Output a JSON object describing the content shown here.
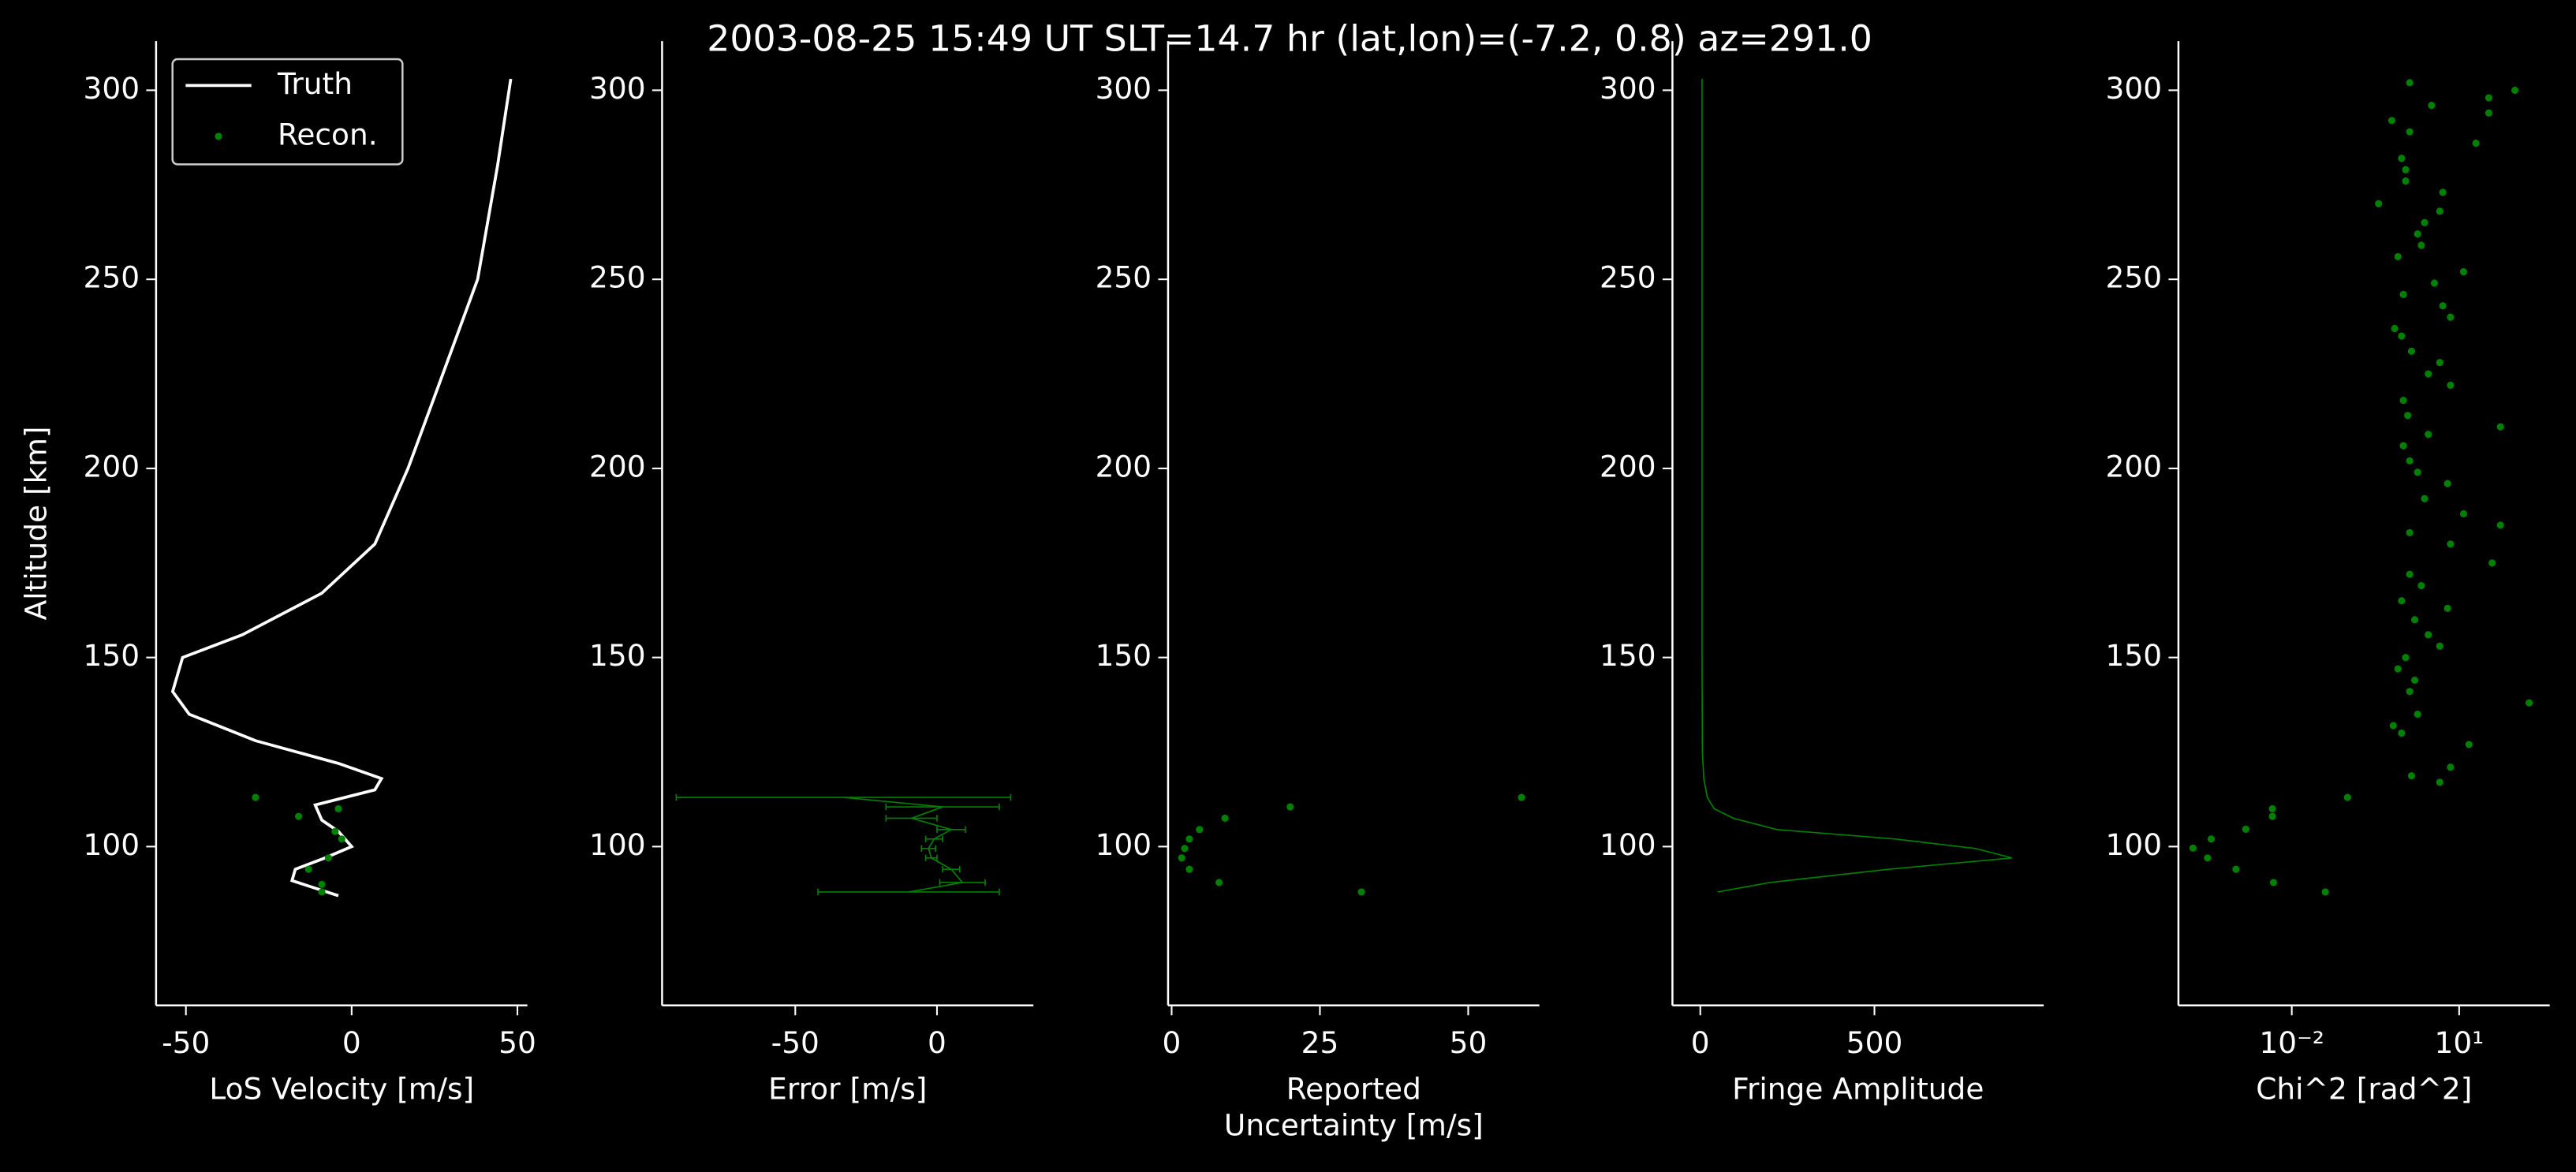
{
  "title": "2003-08-25 15:49 UT     SLT=14.7 hr      (lat,lon)=(-7.2, 0.8)      az=291.0",
  "chart_data": [
    {
      "type": "line",
      "xlabel": [
        "LoS Velocity [m/s]"
      ],
      "ylabel": "Altitude [km]",
      "xlim": [
        -59,
        53
      ],
      "ylim": [
        58,
        313
      ],
      "xticks": [
        -50,
        0,
        50
      ],
      "yticks": [
        100,
        150,
        200,
        250,
        300
      ],
      "legend": "upper left",
      "series": [
        {
          "name": "Truth",
          "color": "#ffffff",
          "style": "line",
          "x": [
            48,
            44,
            38,
            25,
            17,
            7,
            -9,
            -33,
            -51,
            -54,
            -49,
            -29,
            -4,
            9,
            7,
            -11,
            -9,
            -4,
            0,
            -8,
            -17,
            -18,
            -11,
            -4
          ],
          "y": [
            303,
            280,
            250,
            219,
            200,
            180,
            167,
            156,
            150,
            141,
            135,
            128,
            122,
            118,
            115,
            111,
            107,
            104,
            100,
            97,
            94,
            91,
            89,
            87
          ]
        },
        {
          "name": "Recon.",
          "color": "#008000",
          "style": "markers",
          "x": [
            -29,
            -16,
            -4,
            -5,
            -3,
            -7,
            -13,
            -9,
            -9
          ],
          "y": [
            113,
            108,
            110,
            104,
            102,
            97,
            94,
            90,
            88
          ]
        }
      ]
    },
    {
      "type": "errorbar",
      "xlabel": [
        "Error [m/s]"
      ],
      "xlim": [
        -97,
        34
      ],
      "ylim": [
        58,
        313
      ],
      "xticks": [
        -50,
        0
      ],
      "yticks": [
        100,
        150,
        200,
        250,
        300
      ],
      "series": [
        {
          "color": "#008000",
          "style": "line",
          "x": [
            -33,
            2,
            -9,
            5,
            -1,
            -3,
            -2,
            5,
            9,
            -10
          ],
          "xerr": [
            59,
            20,
            9,
            5,
            3,
            2.5,
            2,
            3,
            8,
            32
          ],
          "y": [
            113,
            110.5,
            107.5,
            104.5,
            102,
            99.5,
            97,
            94,
            90.5,
            88
          ]
        }
      ]
    },
    {
      "type": "scatter",
      "xlabel": [
        "Reported",
        "Uncertainty [m/s]"
      ],
      "xlim": [
        -0.6,
        62
      ],
      "ylim": [
        58,
        313
      ],
      "xticks": [
        0,
        25,
        50
      ],
      "yticks": [
        100,
        150,
        200,
        250,
        300
      ],
      "series": [
        {
          "color": "#008000",
          "style": "markers",
          "x": [
            59,
            20,
            9,
            4.7,
            3,
            2.2,
            1.7,
            3,
            8,
            32
          ],
          "y": [
            113,
            110.5,
            107.5,
            104.5,
            102,
            99.5,
            97,
            94,
            90.5,
            88
          ]
        }
      ]
    },
    {
      "type": "line",
      "xlabel": [
        "Fringe Amplitude"
      ],
      "xlim": [
        -80,
        986
      ],
      "ylim": [
        58,
        313
      ],
      "xticks": [
        0,
        500
      ],
      "yticks": [
        100,
        150,
        200,
        250,
        300
      ],
      "series": [
        {
          "color": "#008000",
          "style": "line",
          "x": [
            5,
            5,
            5,
            5,
            6,
            10,
            20,
            40,
            95,
            220,
            560,
            790,
            895,
            540,
            200,
            50
          ],
          "y": [
            303,
            250,
            200,
            150,
            125,
            118,
            113,
            110,
            107.5,
            104.5,
            102,
            99.5,
            97,
            94,
            90.5,
            88
          ]
        }
      ]
    },
    {
      "type": "scatter",
      "xlabel": [
        "Chi^2 [rad^2]"
      ],
      "xscale": "log",
      "xlim": [
        9.3e-05,
        420
      ],
      "ylim": [
        58,
        313
      ],
      "xticks": [
        {
          "value": 0.01,
          "label": "10⁻²"
        },
        {
          "value": 10,
          "label": "10¹"
        }
      ],
      "yticks": [
        100,
        150,
        200,
        250,
        300
      ],
      "series": [
        {
          "color": "#008000",
          "style": "markers",
          "x": [
            0.00017,
            0.00036,
            0.00031,
            0.001,
            0.0015,
            0.0045,
            0.0045,
            0.0047,
            0.04,
            0.1,
            1.4,
            7,
            4.5,
            15,
            0.93,
            0.66,
            1.8,
            180,
            1.3,
            1.6,
            0.8,
            1.1,
            4.5,
            2.8,
            1.6,
            6.2,
            0.93,
            2.1,
            1.3,
            39,
            7,
            1.3,
            55,
            12,
            2.4,
            6.2,
            1.8,
            1.3,
            1,
            2.8,
            55,
            1.2,
            1,
            7,
            2.8,
            4.5,
            1.4,
            0.93,
            0.7,
            7,
            5.1,
            1,
            3.6,
            12,
            0.8,
            2.1,
            1.8,
            2.4,
            4.5,
            0.36,
            5.1,
            1.1,
            1.1,
            0.93,
            20,
            1.3,
            0.62,
            34,
            3.2,
            34,
            100,
            1.3
          ],
          "y": [
            99.6,
            102,
            97,
            94,
            104.6,
            110,
            108,
            90.5,
            88,
            113,
            118.7,
            121,
            117,
            127,
            130,
            132,
            135,
            138,
            141,
            144,
            147,
            150,
            153,
            156,
            160,
            163,
            165,
            169,
            172,
            175,
            180,
            183,
            185,
            188,
            192,
            196,
            199,
            202,
            206,
            209,
            211,
            214,
            218,
            222,
            225,
            228,
            231,
            235,
            237,
            240,
            243,
            246,
            249,
            252,
            256,
            259,
            262,
            265,
            268,
            270,
            273,
            276,
            279,
            282,
            286,
            289,
            292,
            294,
            296,
            298,
            300,
            302
          ]
        }
      ]
    }
  ]
}
